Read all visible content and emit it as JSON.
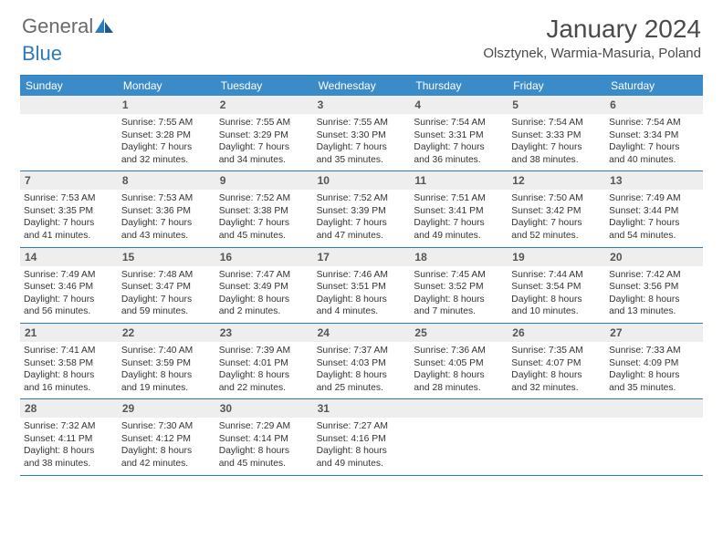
{
  "logo": {
    "general": "General",
    "blue": "Blue"
  },
  "title": "January 2024",
  "location": "Olsztynek, Warmia-Masuria, Poland",
  "colors": {
    "header_bg": "#3b8bc9",
    "border": "#2b7bbf",
    "daynum_bg": "#eeeeee",
    "text": "#333333",
    "logo_gray": "#6a6a6a",
    "logo_blue": "#2b7bbf"
  },
  "weekdays": [
    "Sunday",
    "Monday",
    "Tuesday",
    "Wednesday",
    "Thursday",
    "Friday",
    "Saturday"
  ],
  "weeks": [
    [
      null,
      {
        "n": "1",
        "sr": "Sunrise: 7:55 AM",
        "ss": "Sunset: 3:28 PM",
        "d1": "Daylight: 7 hours",
        "d2": "and 32 minutes."
      },
      {
        "n": "2",
        "sr": "Sunrise: 7:55 AM",
        "ss": "Sunset: 3:29 PM",
        "d1": "Daylight: 7 hours",
        "d2": "and 34 minutes."
      },
      {
        "n": "3",
        "sr": "Sunrise: 7:55 AM",
        "ss": "Sunset: 3:30 PM",
        "d1": "Daylight: 7 hours",
        "d2": "and 35 minutes."
      },
      {
        "n": "4",
        "sr": "Sunrise: 7:54 AM",
        "ss": "Sunset: 3:31 PM",
        "d1": "Daylight: 7 hours",
        "d2": "and 36 minutes."
      },
      {
        "n": "5",
        "sr": "Sunrise: 7:54 AM",
        "ss": "Sunset: 3:33 PM",
        "d1": "Daylight: 7 hours",
        "d2": "and 38 minutes."
      },
      {
        "n": "6",
        "sr": "Sunrise: 7:54 AM",
        "ss": "Sunset: 3:34 PM",
        "d1": "Daylight: 7 hours",
        "d2": "and 40 minutes."
      }
    ],
    [
      {
        "n": "7",
        "sr": "Sunrise: 7:53 AM",
        "ss": "Sunset: 3:35 PM",
        "d1": "Daylight: 7 hours",
        "d2": "and 41 minutes."
      },
      {
        "n": "8",
        "sr": "Sunrise: 7:53 AM",
        "ss": "Sunset: 3:36 PM",
        "d1": "Daylight: 7 hours",
        "d2": "and 43 minutes."
      },
      {
        "n": "9",
        "sr": "Sunrise: 7:52 AM",
        "ss": "Sunset: 3:38 PM",
        "d1": "Daylight: 7 hours",
        "d2": "and 45 minutes."
      },
      {
        "n": "10",
        "sr": "Sunrise: 7:52 AM",
        "ss": "Sunset: 3:39 PM",
        "d1": "Daylight: 7 hours",
        "d2": "and 47 minutes."
      },
      {
        "n": "11",
        "sr": "Sunrise: 7:51 AM",
        "ss": "Sunset: 3:41 PM",
        "d1": "Daylight: 7 hours",
        "d2": "and 49 minutes."
      },
      {
        "n": "12",
        "sr": "Sunrise: 7:50 AM",
        "ss": "Sunset: 3:42 PM",
        "d1": "Daylight: 7 hours",
        "d2": "and 52 minutes."
      },
      {
        "n": "13",
        "sr": "Sunrise: 7:49 AM",
        "ss": "Sunset: 3:44 PM",
        "d1": "Daylight: 7 hours",
        "d2": "and 54 minutes."
      }
    ],
    [
      {
        "n": "14",
        "sr": "Sunrise: 7:49 AM",
        "ss": "Sunset: 3:46 PM",
        "d1": "Daylight: 7 hours",
        "d2": "and 56 minutes."
      },
      {
        "n": "15",
        "sr": "Sunrise: 7:48 AM",
        "ss": "Sunset: 3:47 PM",
        "d1": "Daylight: 7 hours",
        "d2": "and 59 minutes."
      },
      {
        "n": "16",
        "sr": "Sunrise: 7:47 AM",
        "ss": "Sunset: 3:49 PM",
        "d1": "Daylight: 8 hours",
        "d2": "and 2 minutes."
      },
      {
        "n": "17",
        "sr": "Sunrise: 7:46 AM",
        "ss": "Sunset: 3:51 PM",
        "d1": "Daylight: 8 hours",
        "d2": "and 4 minutes."
      },
      {
        "n": "18",
        "sr": "Sunrise: 7:45 AM",
        "ss": "Sunset: 3:52 PM",
        "d1": "Daylight: 8 hours",
        "d2": "and 7 minutes."
      },
      {
        "n": "19",
        "sr": "Sunrise: 7:44 AM",
        "ss": "Sunset: 3:54 PM",
        "d1": "Daylight: 8 hours",
        "d2": "and 10 minutes."
      },
      {
        "n": "20",
        "sr": "Sunrise: 7:42 AM",
        "ss": "Sunset: 3:56 PM",
        "d1": "Daylight: 8 hours",
        "d2": "and 13 minutes."
      }
    ],
    [
      {
        "n": "21",
        "sr": "Sunrise: 7:41 AM",
        "ss": "Sunset: 3:58 PM",
        "d1": "Daylight: 8 hours",
        "d2": "and 16 minutes."
      },
      {
        "n": "22",
        "sr": "Sunrise: 7:40 AM",
        "ss": "Sunset: 3:59 PM",
        "d1": "Daylight: 8 hours",
        "d2": "and 19 minutes."
      },
      {
        "n": "23",
        "sr": "Sunrise: 7:39 AM",
        "ss": "Sunset: 4:01 PM",
        "d1": "Daylight: 8 hours",
        "d2": "and 22 minutes."
      },
      {
        "n": "24",
        "sr": "Sunrise: 7:37 AM",
        "ss": "Sunset: 4:03 PM",
        "d1": "Daylight: 8 hours",
        "d2": "and 25 minutes."
      },
      {
        "n": "25",
        "sr": "Sunrise: 7:36 AM",
        "ss": "Sunset: 4:05 PM",
        "d1": "Daylight: 8 hours",
        "d2": "and 28 minutes."
      },
      {
        "n": "26",
        "sr": "Sunrise: 7:35 AM",
        "ss": "Sunset: 4:07 PM",
        "d1": "Daylight: 8 hours",
        "d2": "and 32 minutes."
      },
      {
        "n": "27",
        "sr": "Sunrise: 7:33 AM",
        "ss": "Sunset: 4:09 PM",
        "d1": "Daylight: 8 hours",
        "d2": "and 35 minutes."
      }
    ],
    [
      {
        "n": "28",
        "sr": "Sunrise: 7:32 AM",
        "ss": "Sunset: 4:11 PM",
        "d1": "Daylight: 8 hours",
        "d2": "and 38 minutes."
      },
      {
        "n": "29",
        "sr": "Sunrise: 7:30 AM",
        "ss": "Sunset: 4:12 PM",
        "d1": "Daylight: 8 hours",
        "d2": "and 42 minutes."
      },
      {
        "n": "30",
        "sr": "Sunrise: 7:29 AM",
        "ss": "Sunset: 4:14 PM",
        "d1": "Daylight: 8 hours",
        "d2": "and 45 minutes."
      },
      {
        "n": "31",
        "sr": "Sunrise: 7:27 AM",
        "ss": "Sunset: 4:16 PM",
        "d1": "Daylight: 8 hours",
        "d2": "and 49 minutes."
      },
      null,
      null,
      null
    ]
  ]
}
